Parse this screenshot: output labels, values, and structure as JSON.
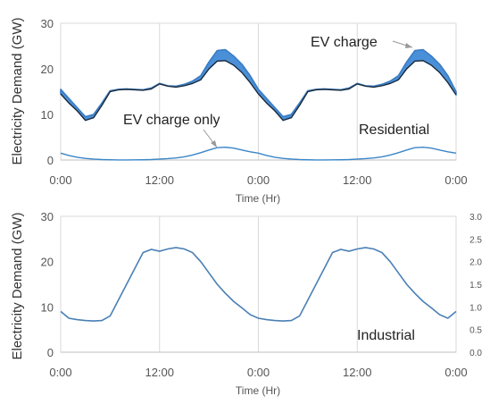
{
  "chart_data": [
    {
      "type": "line",
      "panel": "top",
      "ylabel": "Electricity Demand (GW)",
      "xlabel": "Time (Hr)",
      "xlim": [
        0,
        48
      ],
      "ylim": [
        0,
        30
      ],
      "y_ticks": [
        "0",
        "10",
        "20",
        "30"
      ],
      "x_ticks": [
        "0:00",
        "12:00",
        "0:00",
        "12:00",
        "0:00"
      ],
      "grid": "vertical",
      "annotations": [
        "EV charge",
        "EV charge only",
        "Residential"
      ],
      "x": [
        0,
        1,
        2,
        3,
        4,
        5,
        6,
        7,
        8,
        9,
        10,
        11,
        12,
        13,
        14,
        15,
        16,
        17,
        18,
        19,
        20,
        21,
        22,
        23,
        24,
        25,
        26,
        27,
        28,
        29,
        30,
        31,
        32,
        33,
        34,
        35,
        36,
        37,
        38,
        39,
        40,
        41,
        42,
        43,
        44,
        45,
        46,
        47,
        48
      ],
      "series": [
        {
          "role": "residential_with_ev",
          "values": [
            15.5,
            13.5,
            11.5,
            9.5,
            10.0,
            12.5,
            15.2,
            15.5,
            15.6,
            15.5,
            15.4,
            15.8,
            16.8,
            16.3,
            16.2,
            16.6,
            17.3,
            18.5,
            21.5,
            24.0,
            24.2,
            22.8,
            21.0,
            18.5,
            15.5,
            13.5,
            11.5,
            9.5,
            10.0,
            12.5,
            15.2,
            15.5,
            15.6,
            15.5,
            15.4,
            15.8,
            16.8,
            16.3,
            16.2,
            16.6,
            17.3,
            18.5,
            21.5,
            24.0,
            24.2,
            22.8,
            21.0,
            18.5,
            15.0
          ]
        },
        {
          "role": "residential_base",
          "values": [
            14.5,
            12.5,
            10.8,
            8.7,
            9.3,
            12.0,
            15.0,
            15.4,
            15.5,
            15.4,
            15.3,
            15.6,
            16.7,
            16.2,
            16.0,
            16.3,
            16.8,
            17.6,
            20.0,
            21.7,
            21.8,
            20.8,
            19.2,
            17.0,
            14.5,
            12.5,
            10.8,
            8.7,
            9.3,
            12.0,
            15.0,
            15.4,
            15.5,
            15.4,
            15.3,
            15.6,
            16.7,
            16.2,
            16.0,
            16.3,
            16.8,
            17.6,
            20.0,
            21.7,
            21.8,
            20.8,
            19.2,
            17.0,
            14.3
          ]
        },
        {
          "role": "ev_charge_only",
          "values": [
            1.5,
            1.0,
            0.6,
            0.35,
            0.2,
            0.1,
            0.05,
            0.02,
            0.02,
            0.03,
            0.05,
            0.1,
            0.2,
            0.3,
            0.45,
            0.7,
            1.1,
            1.6,
            2.2,
            2.7,
            2.8,
            2.6,
            2.2,
            1.8,
            1.5,
            1.0,
            0.6,
            0.35,
            0.2,
            0.1,
            0.05,
            0.02,
            0.02,
            0.03,
            0.05,
            0.1,
            0.2,
            0.3,
            0.45,
            0.7,
            1.1,
            1.6,
            2.2,
            2.7,
            2.8,
            2.6,
            2.2,
            1.8,
            1.5
          ]
        }
      ]
    },
    {
      "type": "line",
      "panel": "bottom",
      "ylabel": "Electricity Demand (GW)",
      "xlabel": "Time (Hr)",
      "xlim": [
        0,
        48
      ],
      "ylim": [
        0,
        30
      ],
      "y2lim": [
        0,
        3
      ],
      "y_ticks": [
        "0",
        "10",
        "20",
        "30"
      ],
      "y2_ticks": [
        "0.0",
        "0.5",
        "1.0",
        "1.5",
        "2.0",
        "2.5",
        "3.0"
      ],
      "x_ticks": [
        "0:00",
        "12:00",
        "0:00",
        "12:00",
        "0:00"
      ],
      "grid": "vertical",
      "annotations": [
        "Industrial"
      ],
      "x": [
        0,
        1,
        2,
        3,
        4,
        5,
        6,
        7,
        8,
        9,
        10,
        11,
        12,
        13,
        14,
        15,
        16,
        17,
        18,
        19,
        20,
        21,
        22,
        23,
        24,
        25,
        26,
        27,
        28,
        29,
        30,
        31,
        32,
        33,
        34,
        35,
        36,
        37,
        38,
        39,
        40,
        41,
        42,
        43,
        44,
        45,
        46,
        47,
        48
      ],
      "series": [
        {
          "role": "industrial",
          "values": [
            9.0,
            7.5,
            7.2,
            7.0,
            6.9,
            7.0,
            8.0,
            11.5,
            15.0,
            18.5,
            22.0,
            22.7,
            22.3,
            22.8,
            23.1,
            22.8,
            22.0,
            20.0,
            17.5,
            15.0,
            13.0,
            11.2,
            9.8,
            8.3,
            7.5,
            7.2,
            7.0,
            6.9,
            7.0,
            8.0,
            11.5,
            15.0,
            18.5,
            22.0,
            22.7,
            22.3,
            22.8,
            23.1,
            22.8,
            22.0,
            20.0,
            17.5,
            15.0,
            13.0,
            11.2,
            9.8,
            8.3,
            7.5,
            9.0
          ]
        }
      ]
    }
  ]
}
